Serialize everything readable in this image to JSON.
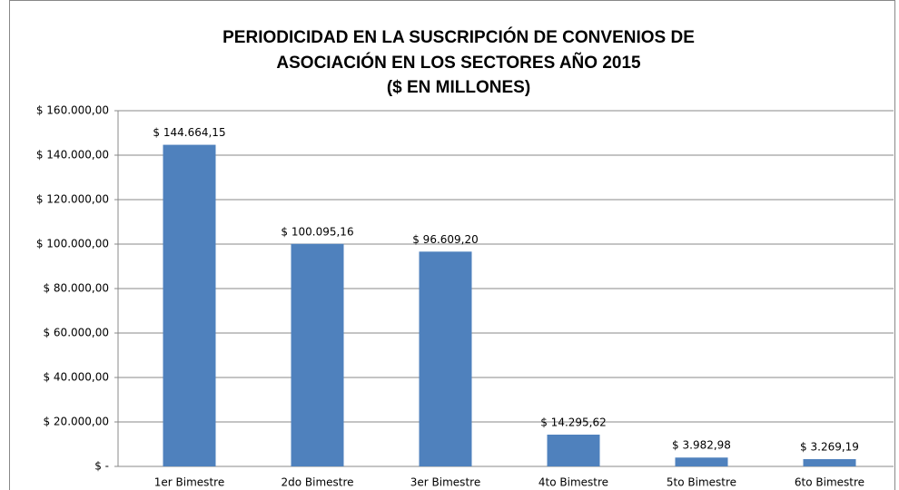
{
  "chart_data": {
    "type": "bar",
    "title": [
      "PERIODICIDAD EN LA SUSCRIPCIÓN DE CONVENIOS DE",
      "ASOCIACIÓN EN LOS SECTORES AÑO 2015",
      "($ EN MILLONES)"
    ],
    "categories": [
      "1er Bimestre",
      "2do Bimestre",
      "3er Bimestre",
      "4to Bimestre",
      "5to Bimestre",
      "6to Bimestre"
    ],
    "values": [
      144664.15,
      100095.16,
      96609.2,
      14295.62,
      3982.98,
      3269.19
    ],
    "value_labels": [
      "$ 144.664,15",
      "$ 100.095,16",
      "$ 96.609,20",
      "$ 14.295,62",
      "$ 3.982,98",
      "$ 3.269,19"
    ],
    "color": "#4f81bd",
    "ylim": [
      0,
      160000
    ],
    "yticks": [
      {
        "value": 0,
        "label": "$ -"
      },
      {
        "value": 20000,
        "label": "$ 20.000,00"
      },
      {
        "value": 40000,
        "label": "$ 40.000,00"
      },
      {
        "value": 60000,
        "label": "$ 60.000,00"
      },
      {
        "value": 80000,
        "label": "$ 80.000,00"
      },
      {
        "value": 100000,
        "label": "$ 100.000,00"
      },
      {
        "value": 120000,
        "label": "$ 120.000,00"
      },
      {
        "value": 140000,
        "label": "$ 140.000,00"
      },
      {
        "value": 160000,
        "label": "$ 160.000,00"
      }
    ],
    "grid": true
  }
}
